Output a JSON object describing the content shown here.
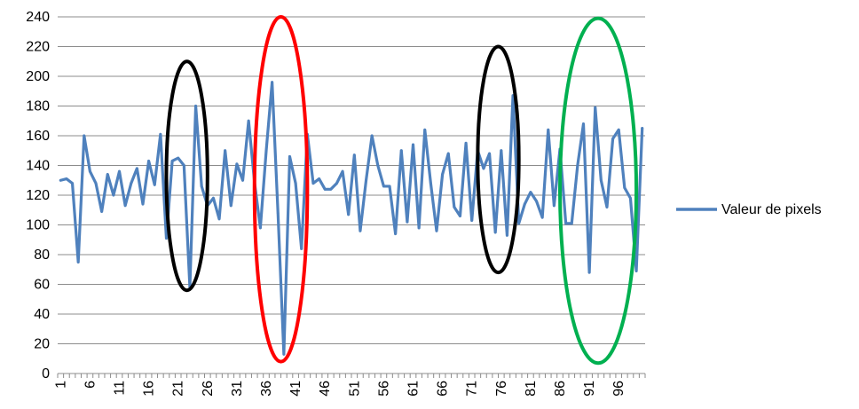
{
  "chart_data": {
    "type": "line",
    "ylim": [
      0,
      240
    ],
    "yticks": [
      0,
      20,
      40,
      60,
      80,
      100,
      120,
      140,
      160,
      180,
      200,
      220,
      240
    ],
    "xticks": [
      "1",
      "6",
      "11",
      "16",
      "21",
      "26",
      "31",
      "36",
      "41",
      "46",
      "51",
      "56",
      "61",
      "66",
      "71",
      "76",
      "81",
      "86",
      "91",
      "96"
    ],
    "grid": true,
    "legend_position": "right",
    "series": [
      {
        "name": "Valeur de pixels",
        "color": "#4f81bd",
        "x": [
          1,
          2,
          3,
          4,
          5,
          6,
          7,
          8,
          9,
          10,
          11,
          12,
          13,
          14,
          15,
          16,
          17,
          18,
          19,
          20,
          21,
          22,
          23,
          24,
          25,
          26,
          27,
          28,
          29,
          30,
          31,
          32,
          33,
          34,
          35,
          36,
          37,
          38,
          39,
          40,
          41,
          42,
          43,
          44,
          45,
          46,
          47,
          48,
          49,
          50,
          51,
          52,
          53,
          54,
          55,
          56,
          57,
          58,
          59,
          60,
          61,
          62,
          63,
          64,
          65,
          66,
          67,
          68,
          69,
          70,
          71,
          72,
          73,
          74,
          75,
          76,
          77,
          78,
          79,
          80,
          81,
          82,
          83,
          84,
          85,
          86,
          87,
          88,
          89,
          90,
          91,
          92,
          93,
          94,
          95,
          96,
          97,
          98,
          99,
          100
        ],
        "values": [
          130,
          131,
          128,
          75,
          160,
          136,
          128,
          109,
          134,
          120,
          136,
          113,
          128,
          138,
          114,
          143,
          127,
          161,
          91,
          143,
          145,
          140,
          58,
          180,
          126,
          113,
          118,
          104,
          150,
          113,
          141,
          130,
          170,
          129,
          98,
          150,
          196,
          108,
          13,
          146,
          128,
          84,
          161,
          128,
          131,
          124,
          124,
          128,
          136,
          107,
          147,
          96,
          130,
          160,
          140,
          126,
          126,
          94,
          150,
          102,
          154,
          98,
          164,
          128,
          96,
          134,
          148,
          112,
          106,
          155,
          103,
          150,
          138,
          148,
          95,
          150,
          93,
          187,
          101,
          114,
          122,
          116,
          105,
          164,
          113,
          151,
          101,
          101,
          140,
          168,
          68,
          179,
          130,
          112,
          158,
          164,
          125,
          118,
          69,
          165
        ]
      }
    ],
    "annotations": [
      {
        "type": "ellipse",
        "color": "#000000",
        "cx": 22.5,
        "cy": 133,
        "rx": 3.5,
        "ry": 77
      },
      {
        "type": "ellipse",
        "color": "#ff0000",
        "cx": 38.5,
        "cy": 124,
        "rx": 4.5,
        "ry": 116
      },
      {
        "type": "ellipse",
        "color": "#000000",
        "cx": 75.5,
        "cy": 144,
        "rx": 3.5,
        "ry": 76
      },
      {
        "type": "ellipse",
        "color": "#00b050",
        "cx": 92.5,
        "cy": 123,
        "rx": 6.5,
        "ry": 116
      }
    ]
  }
}
